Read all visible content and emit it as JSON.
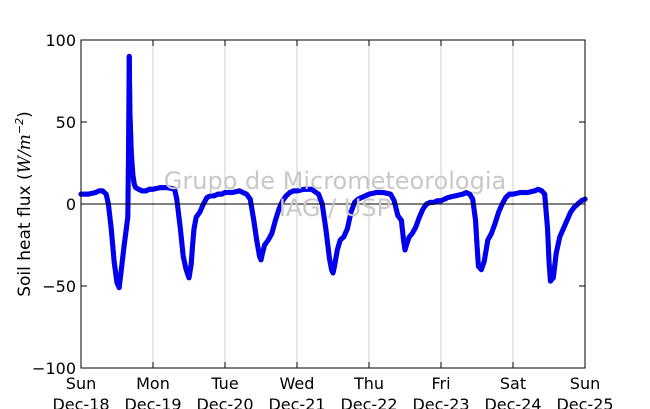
{
  "chart_data": {
    "type": "scatter",
    "title": "",
    "xlabel": "",
    "ylabel": "Soil heat flux (W/m⁻²)",
    "ylabel_parts": {
      "text": "Soil heat flux (",
      "math": "W/m",
      "exp": "−2",
      "close": ")"
    },
    "watermark": [
      "Grupo de Micrometeorologia",
      "IAG / USP"
    ],
    "xlim": [
      0,
      7
    ],
    "ylim": [
      -100,
      100
    ],
    "y_ticks": [
      100,
      50,
      0,
      -50,
      -100
    ],
    "y_tick_labels": [
      "100",
      "50",
      "0",
      "−50",
      "−100"
    ],
    "x_ticks": [
      0,
      1,
      2,
      3,
      4,
      5,
      6,
      7
    ],
    "x_tick_labels": [
      [
        "Sun",
        "Dec-18"
      ],
      [
        "Mon",
        "Dec-19"
      ],
      [
        "Tue",
        "Dec-20"
      ],
      [
        "Wed",
        "Dec-21"
      ],
      [
        "Thu",
        "Dec-22"
      ],
      [
        "Fri",
        "Dec-23"
      ],
      [
        "Sat",
        "Dec-24"
      ],
      [
        "Sun",
        "Dec-25"
      ]
    ],
    "grid": "vertical",
    "zero_line": true,
    "series": [
      {
        "color": "#0000ee",
        "x": [
          0.0,
          0.1,
          0.2,
          0.25,
          0.3,
          0.35,
          0.38,
          0.42,
          0.46,
          0.5,
          0.53,
          0.56,
          0.6,
          0.63,
          0.65,
          0.66,
          0.67,
          0.68,
          0.7,
          0.72,
          0.74,
          0.76,
          0.8,
          0.85,
          0.9,
          0.95,
          1.0,
          1.1,
          1.2,
          1.3,
          1.33,
          1.38,
          1.42,
          1.46,
          1.5,
          1.53,
          1.55,
          1.57,
          1.6,
          1.65,
          1.7,
          1.75,
          1.8,
          1.85,
          1.9,
          1.95,
          2.0,
          2.1,
          2.2,
          2.3,
          2.35,
          2.4,
          2.44,
          2.48,
          2.5,
          2.52,
          2.55,
          2.6,
          2.65,
          2.7,
          2.75,
          2.8,
          2.85,
          2.9,
          2.95,
          3.0,
          3.1,
          3.2,
          3.3,
          3.35,
          3.4,
          3.45,
          3.48,
          3.5,
          3.52,
          3.56,
          3.6,
          3.65,
          3.7,
          3.75,
          3.8,
          3.85,
          3.9,
          3.95,
          4.0,
          4.1,
          4.2,
          4.3,
          4.35,
          4.4,
          4.45,
          4.48,
          4.5,
          4.52,
          4.56,
          4.6,
          4.65,
          4.7,
          4.75,
          4.8,
          4.85,
          4.9,
          4.95,
          5.0,
          5.1,
          5.2,
          5.3,
          5.35,
          5.4,
          5.44,
          5.48,
          5.5,
          5.52,
          5.56,
          5.6,
          5.65,
          5.7,
          5.75,
          5.8,
          5.85,
          5.9,
          5.95,
          6.0,
          6.1,
          6.2,
          6.3,
          6.35,
          6.4,
          6.44,
          6.48,
          6.5,
          6.52,
          6.56,
          6.6,
          6.65,
          6.7,
          6.75,
          6.8,
          6.85,
          6.9,
          6.95,
          7.0
        ],
        "y": [
          6,
          6,
          7,
          8,
          8,
          6,
          0,
          -15,
          -35,
          -48,
          -51,
          -40,
          -25,
          -15,
          -8,
          30,
          90,
          55,
          30,
          18,
          12,
          10,
          9,
          8,
          8,
          9,
          9,
          10,
          10,
          9,
          3,
          -15,
          -32,
          -40,
          -45,
          -37,
          -25,
          -15,
          -8,
          -5,
          0,
          4,
          5,
          5,
          6,
          6,
          7,
          7,
          8,
          6,
          3,
          -10,
          -22,
          -32,
          -34,
          -30,
          -25,
          -22,
          -18,
          -10,
          -3,
          2,
          5,
          7,
          8,
          8,
          9,
          9,
          6,
          0,
          -15,
          -33,
          -40,
          -42,
          -38,
          -28,
          -22,
          -20,
          -15,
          -5,
          1,
          3,
          4,
          5,
          6,
          7,
          7,
          6,
          2,
          -7,
          -10,
          -22,
          -28,
          -25,
          -20,
          -18,
          -14,
          -8,
          -3,
          0,
          1,
          1,
          2,
          2,
          4,
          5,
          6,
          7,
          6,
          3,
          -10,
          -25,
          -38,
          -40,
          -35,
          -22,
          -18,
          -12,
          -5,
          0,
          4,
          6,
          6,
          7,
          7,
          8,
          9,
          8,
          6,
          -15,
          -35,
          -47,
          -45,
          -30,
          -20,
          -15,
          -10,
          -5,
          -2,
          0,
          2,
          3
        ]
      }
    ]
  }
}
